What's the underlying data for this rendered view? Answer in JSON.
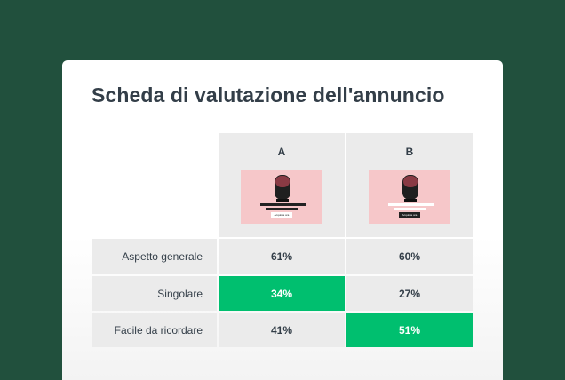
{
  "title": "Scheda di valutazione dell'annuncio",
  "colors": {
    "background": "#21503d",
    "card": "#ffffff",
    "cell": "#ebebeb",
    "winner": "#00bf6f",
    "text": "#333e48",
    "thumbnail": "#f6c7c9"
  },
  "columns": [
    {
      "label": "A",
      "thumbnail": {
        "icon": "speaker-product-icon",
        "cta": "Acquista ora"
      }
    },
    {
      "label": "B",
      "thumbnail": {
        "icon": "speaker-product-icon",
        "cta": "Acquista ora"
      }
    }
  ],
  "rows": [
    {
      "label": "Aspetto generale",
      "values": [
        "61%",
        "60%"
      ],
      "winner": null
    },
    {
      "label": "Singolare",
      "values": [
        "34%",
        "27%"
      ],
      "winner": 0
    },
    {
      "label": "Facile da ricordare",
      "values": [
        "41%",
        "51%"
      ],
      "winner": 1
    }
  ]
}
